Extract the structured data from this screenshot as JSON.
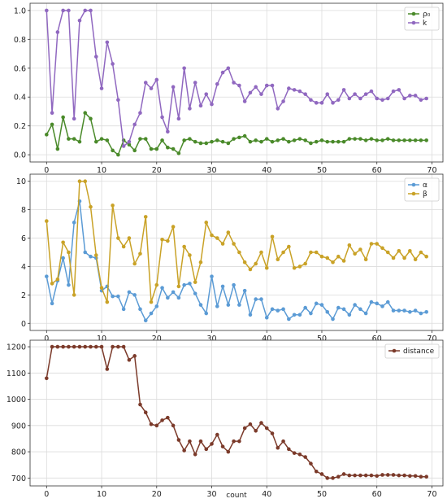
{
  "figure": {
    "colors": {
      "rho": "#4a8a2a",
      "k": "#9068c0",
      "alpha": "#5b9bd5",
      "beta": "#c9a227",
      "distance": "#7b3a2a"
    }
  },
  "chart_data": [
    {
      "type": "line",
      "title": "",
      "xlabel": "",
      "ylabel": "",
      "xlim": [
        -3,
        72
      ],
      "ylim": [
        -0.05,
        1.05
      ],
      "xticks": [
        0,
        10,
        20,
        30,
        40,
        50,
        60,
        70
      ],
      "yticks": [
        0.0,
        0.2,
        0.4,
        0.6,
        0.8,
        1.0
      ],
      "xtick_labels": [
        "0",
        "10",
        "20",
        "30",
        "40",
        "50",
        "60",
        "70"
      ],
      "ytick_labels": [
        "0.0",
        "0.2",
        "0.4",
        "0.6",
        "0.8",
        "1.0"
      ],
      "legend_position": "top-right",
      "grid": true,
      "x": [
        0,
        1,
        2,
        3,
        4,
        5,
        6,
        7,
        8,
        9,
        10,
        11,
        12,
        13,
        14,
        15,
        16,
        17,
        18,
        19,
        20,
        21,
        22,
        23,
        24,
        25,
        26,
        27,
        28,
        29,
        30,
        31,
        32,
        33,
        34,
        35,
        36,
        37,
        38,
        39,
        40,
        41,
        42,
        43,
        44,
        45,
        46,
        47,
        48,
        49,
        50,
        51,
        52,
        53,
        54,
        55,
        56,
        57,
        58,
        59,
        60,
        61,
        62,
        63,
        64,
        65,
        66,
        67,
        68,
        69
      ],
      "series": [
        {
          "name": "ρ₀",
          "color": "#4a8a2a",
          "values": [
            0.14,
            0.21,
            0.04,
            0.26,
            0.11,
            0.11,
            0.09,
            0.29,
            0.25,
            0.09,
            0.11,
            0.1,
            0.03,
            0.0,
            0.1,
            0.07,
            0.03,
            0.11,
            0.11,
            0.04,
            0.04,
            0.1,
            0.05,
            0.04,
            0.01,
            0.1,
            0.11,
            0.09,
            0.08,
            0.08,
            0.09,
            0.1,
            0.09,
            0.08,
            0.11,
            0.12,
            0.13,
            0.09,
            0.1,
            0.09,
            0.11,
            0.09,
            0.1,
            0.11,
            0.09,
            0.1,
            0.11,
            0.1,
            0.08,
            0.09,
            0.1,
            0.09,
            0.09,
            0.09,
            0.09,
            0.11,
            0.11,
            0.11,
            0.1,
            0.11,
            0.1,
            0.1,
            0.11,
            0.1,
            0.1,
            0.1,
            0.1,
            0.1,
            0.1,
            0.1
          ]
        },
        {
          "name": "k",
          "color": "#9068c0",
          "values": [
            1.0,
            0.29,
            0.85,
            1.0,
            1.0,
            0.25,
            0.93,
            1.0,
            1.0,
            0.68,
            0.46,
            0.78,
            0.63,
            0.38,
            0.06,
            0.09,
            0.21,
            0.29,
            0.5,
            0.46,
            0.52,
            0.26,
            0.16,
            0.47,
            0.25,
            0.6,
            0.32,
            0.5,
            0.34,
            0.42,
            0.35,
            0.49,
            0.57,
            0.6,
            0.5,
            0.48,
            0.37,
            0.43,
            0.47,
            0.42,
            0.48,
            0.48,
            0.32,
            0.37,
            0.46,
            0.45,
            0.44,
            0.42,
            0.38,
            0.36,
            0.36,
            0.42,
            0.36,
            0.38,
            0.45,
            0.39,
            0.42,
            0.39,
            0.42,
            0.44,
            0.39,
            0.38,
            0.39,
            0.44,
            0.45,
            0.39,
            0.41,
            0.41,
            0.38,
            0.39
          ]
        }
      ]
    },
    {
      "type": "line",
      "title": "",
      "xlabel": "",
      "ylabel": "",
      "xlim": [
        -3,
        72
      ],
      "ylim": [
        -0.5,
        10.5
      ],
      "xticks": [
        0,
        10,
        20,
        30,
        40,
        50,
        60,
        70
      ],
      "yticks": [
        0,
        2,
        4,
        6,
        8,
        10
      ],
      "xtick_labels": [
        "0",
        "10",
        "20",
        "30",
        "40",
        "50",
        "60",
        "70"
      ],
      "ytick_labels": [
        "0",
        "2",
        "4",
        "6",
        "8",
        "10"
      ],
      "legend_position": "top-right",
      "grid": true,
      "x": [
        0,
        1,
        2,
        3,
        4,
        5,
        6,
        7,
        8,
        9,
        10,
        11,
        12,
        13,
        14,
        15,
        16,
        17,
        18,
        19,
        20,
        21,
        22,
        23,
        24,
        25,
        26,
        27,
        28,
        29,
        30,
        31,
        32,
        33,
        34,
        35,
        36,
        37,
        38,
        39,
        40,
        41,
        42,
        43,
        44,
        45,
        46,
        47,
        48,
        49,
        50,
        51,
        52,
        53,
        54,
        55,
        56,
        57,
        58,
        59,
        60,
        61,
        62,
        63,
        64,
        65,
        66,
        67,
        68,
        69
      ],
      "series": [
        {
          "name": "α",
          "color": "#5b9bd5",
          "values": [
            3.3,
            1.4,
            3.0,
            4.6,
            2.7,
            7.1,
            8.6,
            5.0,
            4.7,
            4.6,
            2.3,
            2.6,
            1.9,
            1.9,
            1.0,
            2.2,
            2.0,
            1.0,
            0.2,
            0.7,
            1.2,
            2.5,
            1.8,
            2.2,
            1.8,
            2.7,
            2.8,
            2.1,
            1.3,
            0.7,
            3.3,
            1.2,
            2.6,
            1.3,
            2.7,
            1.3,
            2.3,
            0.6,
            1.7,
            1.7,
            0.4,
            1.0,
            0.9,
            1.0,
            0.3,
            0.6,
            0.6,
            1.1,
            0.7,
            1.4,
            1.3,
            0.8,
            0.3,
            1.1,
            1.0,
            0.6,
            1.3,
            1.0,
            0.7,
            1.5,
            1.4,
            1.2,
            1.5,
            0.9,
            0.9,
            0.9,
            0.8,
            0.9,
            0.7,
            0.8
          ]
        },
        {
          "name": "β",
          "color": "#c9a227",
          "values": [
            7.2,
            2.8,
            3.1,
            5.7,
            5.0,
            2.0,
            10.0,
            10.0,
            8.2,
            4.8,
            2.5,
            1.5,
            8.3,
            6.0,
            5.4,
            6.0,
            4.2,
            4.9,
            7.5,
            1.5,
            2.7,
            5.9,
            5.8,
            6.8,
            2.6,
            5.4,
            4.8,
            2.9,
            4.3,
            7.1,
            6.2,
            6.0,
            5.6,
            6.4,
            5.6,
            5.0,
            4.3,
            3.8,
            4.2,
            5.0,
            3.9,
            6.1,
            4.5,
            5.0,
            5.4,
            3.9,
            4.0,
            4.2,
            5.0,
            5.0,
            4.7,
            4.6,
            4.3,
            4.7,
            4.4,
            5.5,
            4.9,
            5.2,
            4.5,
            5.6,
            5.6,
            5.3,
            5.0,
            4.6,
            5.1,
            4.6,
            5.1,
            4.5,
            5.0,
            4.7
          ]
        }
      ]
    },
    {
      "type": "line",
      "title": "",
      "xlabel": "count",
      "ylabel": "",
      "xlim": [
        -3,
        72
      ],
      "ylim": [
        670,
        1225
      ],
      "xticks": [
        0,
        10,
        20,
        30,
        40,
        50,
        60,
        70
      ],
      "yticks": [
        700,
        800,
        900,
        1000,
        1100,
        1200
      ],
      "xtick_labels": [
        "0",
        "10",
        "20",
        "30",
        "40",
        "50",
        "60",
        "70"
      ],
      "ytick_labels": [
        "700",
        "800",
        "900",
        "1000",
        "1100",
        "1200"
      ],
      "legend_position": "top-right",
      "grid": true,
      "x": [
        0,
        1,
        2,
        3,
        4,
        5,
        6,
        7,
        8,
        9,
        10,
        11,
        12,
        13,
        14,
        15,
        16,
        17,
        18,
        19,
        20,
        21,
        22,
        23,
        24,
        25,
        26,
        27,
        28,
        29,
        30,
        31,
        32,
        33,
        34,
        35,
        36,
        37,
        38,
        39,
        40,
        41,
        42,
        43,
        44,
        45,
        46,
        47,
        48,
        49,
        50,
        51,
        52,
        53,
        54,
        55,
        56,
        57,
        58,
        59,
        60,
        61,
        62,
        63,
        64,
        65,
        66,
        67,
        68,
        69
      ],
      "series": [
        {
          "name": "distance",
          "color": "#7b3a2a",
          "values": [
            1080,
            1200,
            1200,
            1200,
            1200,
            1200,
            1200,
            1200,
            1200,
            1200,
            1200,
            1115,
            1200,
            1200,
            1200,
            1150,
            1165,
            980,
            950,
            905,
            900,
            920,
            930,
            900,
            845,
            805,
            840,
            790,
            840,
            810,
            830,
            865,
            820,
            800,
            840,
            840,
            890,
            905,
            880,
            910,
            890,
            870,
            815,
            840,
            810,
            795,
            790,
            780,
            755,
            725,
            715,
            700,
            700,
            705,
            715,
            710,
            710,
            710,
            710,
            710,
            708,
            712,
            712,
            712,
            710,
            710,
            708,
            708,
            705,
            705
          ]
        }
      ]
    }
  ]
}
